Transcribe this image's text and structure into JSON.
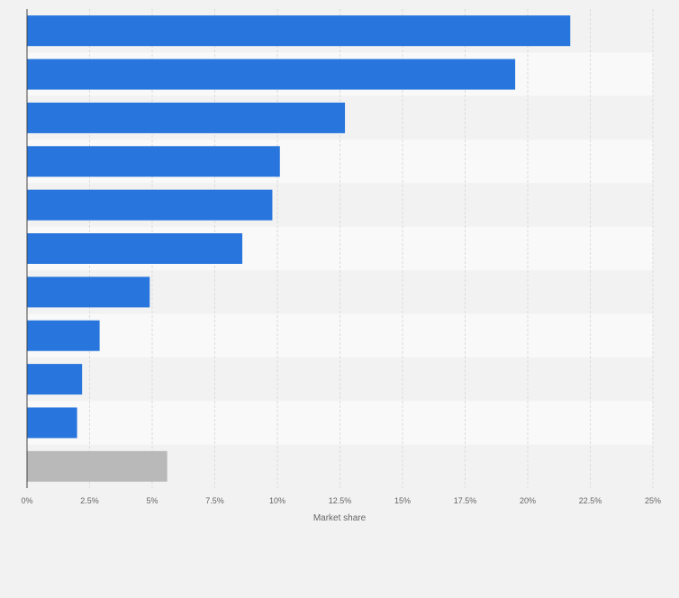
{
  "chart_data": {
    "type": "bar",
    "orientation": "horizontal",
    "categories": [
      "",
      "",
      "",
      "",
      "",
      "",
      "",
      "",
      "",
      "",
      ""
    ],
    "values": [
      21.7,
      19.5,
      12.7,
      10.1,
      9.8,
      8.6,
      4.9,
      2.9,
      2.2,
      2.0,
      5.6
    ],
    "xlabel": "Market share",
    "ylabel": "",
    "xlim": [
      0,
      25
    ],
    "ticks": [
      "0%",
      "2.5%",
      "5%",
      "7.5%",
      "10%",
      "12.5%",
      "15%",
      "17.5%",
      "20%",
      "22.5%",
      "25%"
    ],
    "tick_values": [
      0,
      2.5,
      5,
      7.5,
      10,
      12.5,
      15,
      17.5,
      20,
      22.5,
      25
    ],
    "grid": true,
    "legend": "none",
    "colors": {
      "bar": "#2876dd",
      "bar_other": "#b9b9b9",
      "band_dark": "#f2f2f2",
      "band_light": "#f9f9f9",
      "grid": "#dcdcdc",
      "axis": "#444444",
      "text": "#666666"
    }
  }
}
